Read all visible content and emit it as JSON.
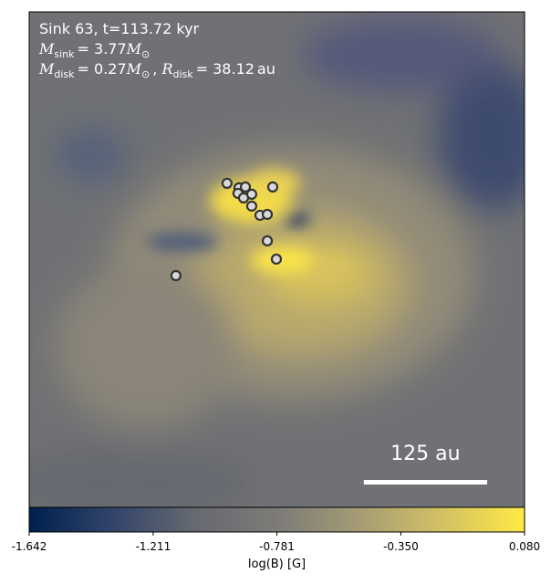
{
  "chart_data": {
    "type": "image-map",
    "title_lines": [
      [
        "Sink 63, t=113.72 kyr"
      ],
      [
        "M",
        "sink",
        "= 3.77",
        "M",
        "⊙"
      ],
      [
        "M",
        "disk",
        "= 0.27",
        "M",
        "⊙",
        ", ",
        "R",
        "disk",
        "= 38.12",
        "au"
      ]
    ],
    "xlim": [
      -251,
      251
    ],
    "ylim": [
      -251,
      251
    ],
    "sinks": {
      "x": [
        -50.5,
        -38.4,
        -31.9,
        -39.4,
        -25.5,
        -33.8,
        -25.5,
        -17.1,
        -9.7,
        -4.2,
        -9.7,
        -0.5,
        -102.3
      ],
      "y": [
        77.3,
        72.7,
        73.6,
        67.1,
        66.2,
        62.5,
        54.2,
        44.9,
        45.8,
        73.6,
        19.0,
        0.5,
        -16.2
      ]
    },
    "scale_bar": {
      "label": "125 au",
      "value": 125
    },
    "colorbar": {
      "label": "log(B) [G]",
      "lim": [
        -1.642,
        0.08
      ],
      "ticks": [
        -1.642,
        -1.211,
        -0.781,
        {
          "value": -0.35,
          "label": "-0.350"
        },
        {
          "value": 0.08,
          "label": "0.080"
        }
      ],
      "colors": [
        "#00204c",
        "#31446b",
        "#666970",
        "#7c7b78",
        "#a59c74",
        "#d3c164",
        "#ffe945"
      ]
    }
  }
}
